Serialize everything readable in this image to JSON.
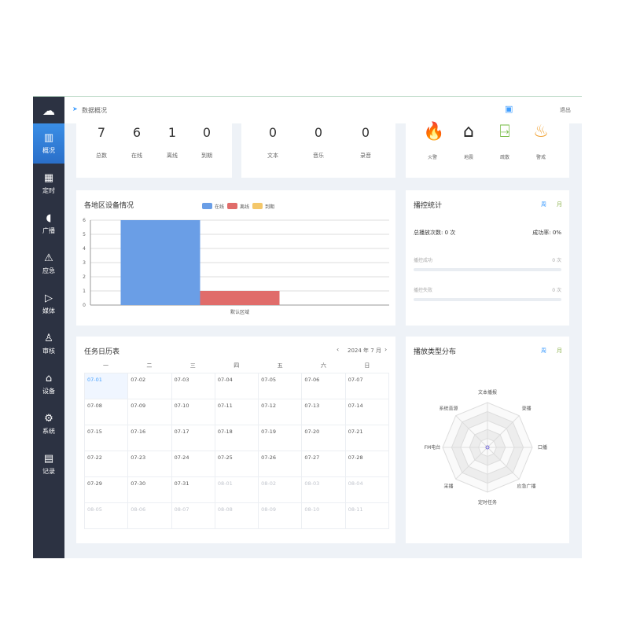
{
  "sidebar": {
    "items": [
      {
        "label": "概况",
        "icon": "monitor-chart-icon"
      },
      {
        "label": "定时",
        "icon": "calendar-clock-icon"
      },
      {
        "label": "广播",
        "icon": "speaker-icon"
      },
      {
        "label": "应急",
        "icon": "alarm-icon"
      },
      {
        "label": "媒体",
        "icon": "media-play-icon"
      },
      {
        "label": "审核",
        "icon": "stamp-icon"
      },
      {
        "label": "设备",
        "icon": "device-icon"
      },
      {
        "label": "系统",
        "icon": "gear-icon"
      },
      {
        "label": "记录",
        "icon": "clipboard-icon"
      }
    ]
  },
  "header": {
    "breadcrumb": "数据概况",
    "logout": "退出"
  },
  "devices": [
    {
      "value": "7",
      "label": "总数"
    },
    {
      "value": "6",
      "label": "在线"
    },
    {
      "value": "1",
      "label": "离线"
    },
    {
      "value": "0",
      "label": "到期"
    }
  ],
  "media": [
    {
      "value": "0",
      "label": "文本"
    },
    {
      "value": "0",
      "label": "音乐"
    },
    {
      "value": "0",
      "label": "录音"
    }
  ],
  "alerts": [
    {
      "label": "火警",
      "icon": "fire-icon",
      "color": "#d9342b"
    },
    {
      "label": "地震",
      "icon": "earthquake-house-icon",
      "color": "#222"
    },
    {
      "label": "疏散",
      "icon": "exit-icon",
      "color": "#6fb83c"
    },
    {
      "label": "警戒",
      "icon": "warning-heat-icon",
      "color": "#f0a030"
    }
  ],
  "chart_data": {
    "type": "bar",
    "title": "各地区设备情况",
    "categories": [
      "默认区域"
    ],
    "series": [
      {
        "name": "在线",
        "values": [
          6
        ],
        "color": "#6a9ee6"
      },
      {
        "name": "离线",
        "values": [
          1
        ],
        "color": "#e06c6a"
      },
      {
        "name": "到期",
        "values": [
          0
        ],
        "color": "#f4c76a"
      }
    ],
    "ylim": [
      0,
      6
    ],
    "yticks": [
      "0",
      "1",
      "2",
      "3",
      "4",
      "5",
      "6"
    ],
    "grid": true,
    "legend": "top"
  },
  "stats": {
    "title": "播控统计",
    "week": "周",
    "month": "月",
    "total": "总播放次数: 0 次",
    "rate": "成功率: 0%",
    "success_label": "播控成功",
    "success_value": "0 次",
    "success_fraction": 0,
    "fail_label": "播控失败",
    "fail_value": "0 次",
    "fail_fraction": 0
  },
  "calendar": {
    "title": "任务日历表",
    "month": "2024 年 7 月",
    "weekdays": [
      "一",
      "二",
      "三",
      "四",
      "五",
      "六",
      "日"
    ],
    "days": [
      "07-01",
      "07-02",
      "07-03",
      "07-04",
      "07-05",
      "07-06",
      "07-07",
      "07-08",
      "07-09",
      "07-10",
      "07-11",
      "07-12",
      "07-13",
      "07-14",
      "07-15",
      "07-16",
      "07-17",
      "07-18",
      "07-19",
      "07-20",
      "07-21",
      "07-22",
      "07-23",
      "07-24",
      "07-25",
      "07-26",
      "07-27",
      "07-28",
      "07-29",
      "07-30",
      "07-31",
      "08-01",
      "08-02",
      "08-03",
      "08-04",
      "08-05",
      "08-06",
      "08-07",
      "08-08",
      "08-09",
      "08-10",
      "08-11"
    ]
  },
  "radar": {
    "title": "播放类型分布",
    "week": "周",
    "month": "月",
    "axes": [
      "文本播报",
      "录播",
      "口播",
      "应急广播",
      "定时任务",
      "采播",
      "FM电台",
      "系统音源"
    ],
    "values": [
      0,
      0,
      0,
      0,
      0,
      0,
      0,
      0
    ]
  }
}
